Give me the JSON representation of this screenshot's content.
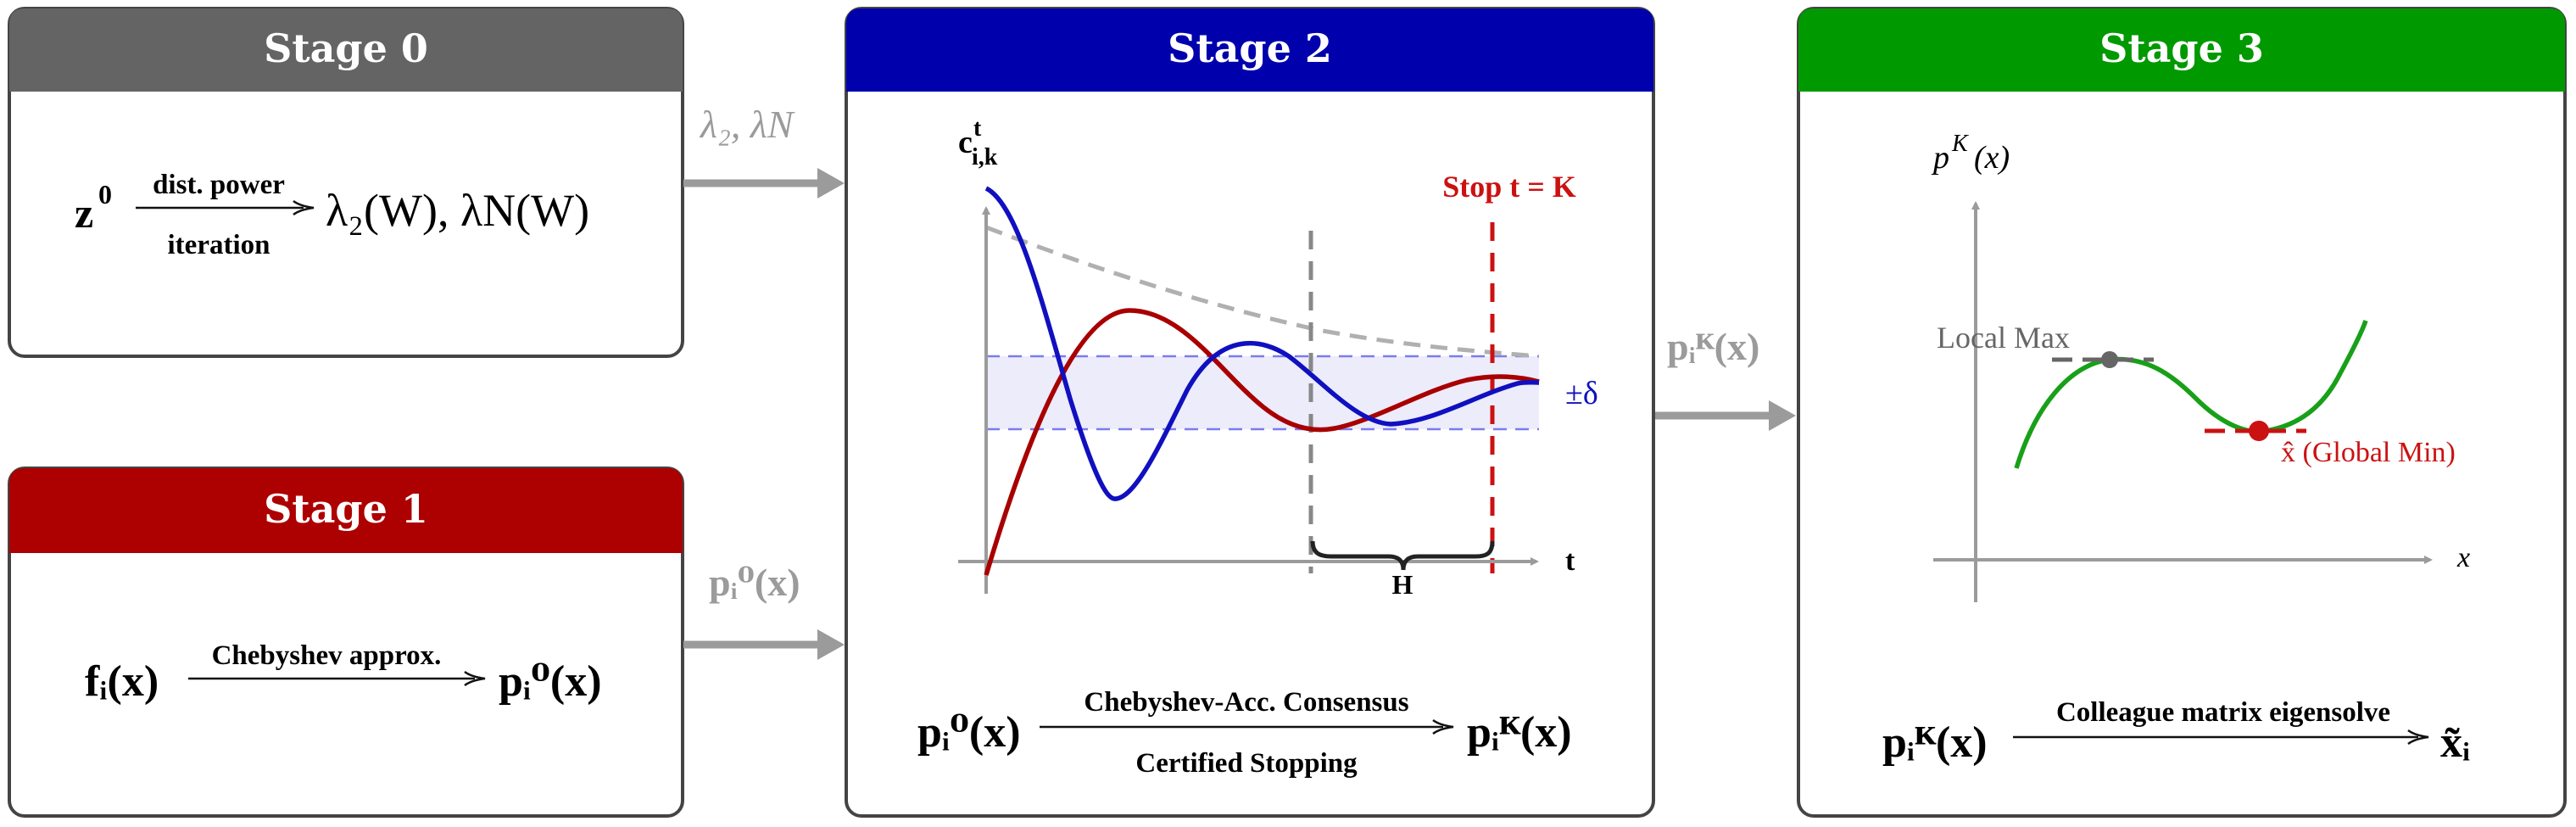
{
  "colors": {
    "stage0_header": "#646464",
    "stage1_header": "#ad0000",
    "stage2_header": "#0000ad",
    "stage3_header": "#009900",
    "box_border": "#444444",
    "arrow": "#9b9b9b",
    "blue_curve": "#1010c0",
    "red_curve": "#a80000",
    "envelope": "#b0b0b0",
    "band_fill": "#ececfb",
    "band_line": "#7b7bf0",
    "stop_line": "#cc1111",
    "green_curve": "#18a018"
  },
  "stage0": {
    "title": "Stage 0",
    "eq_left": "z",
    "eq_left_sup": "0",
    "arrow_top": "dist. power",
    "arrow_bottom": "iteration",
    "eq_right": "λ₂(W), λN(W)"
  },
  "stage1": {
    "title": "Stage 1",
    "eq_left": "fᵢ(x)",
    "arrow_top": "Chebyshev approx.",
    "eq_right": "pᵢ⁰(x)"
  },
  "stage2": {
    "title": "Stage 2",
    "y_label": "c",
    "y_label_sup": "t",
    "y_label_sub": "i,k",
    "x_label": "t",
    "stop_label": "Stop t = K",
    "delta_label": "±δ",
    "h_label": "H",
    "eq_left": "pᵢ⁰(x)",
    "arrow_top": "Chebyshev-Acc. Consensus",
    "arrow_bottom": "Certified Stopping",
    "eq_right": "pᵢᴷ(x)"
  },
  "stage3": {
    "title": "Stage 3",
    "y_label": "p",
    "y_label_sup": "K",
    "y_label_arg": "(x)",
    "x_label": "x",
    "local_max_label": "Local Max",
    "global_min_label": "x̂ (Global Min)",
    "eq_left": "pᵢᴷ(x)",
    "arrow_top": "Colleague matrix eigensolve",
    "eq_right": "x̃ᵢ"
  },
  "connectors": {
    "s0_to_s2": "λ₂, λN",
    "s1_to_s2": "pᵢ⁰(x)",
    "s2_to_s3": "pᵢᴷ(x)"
  }
}
